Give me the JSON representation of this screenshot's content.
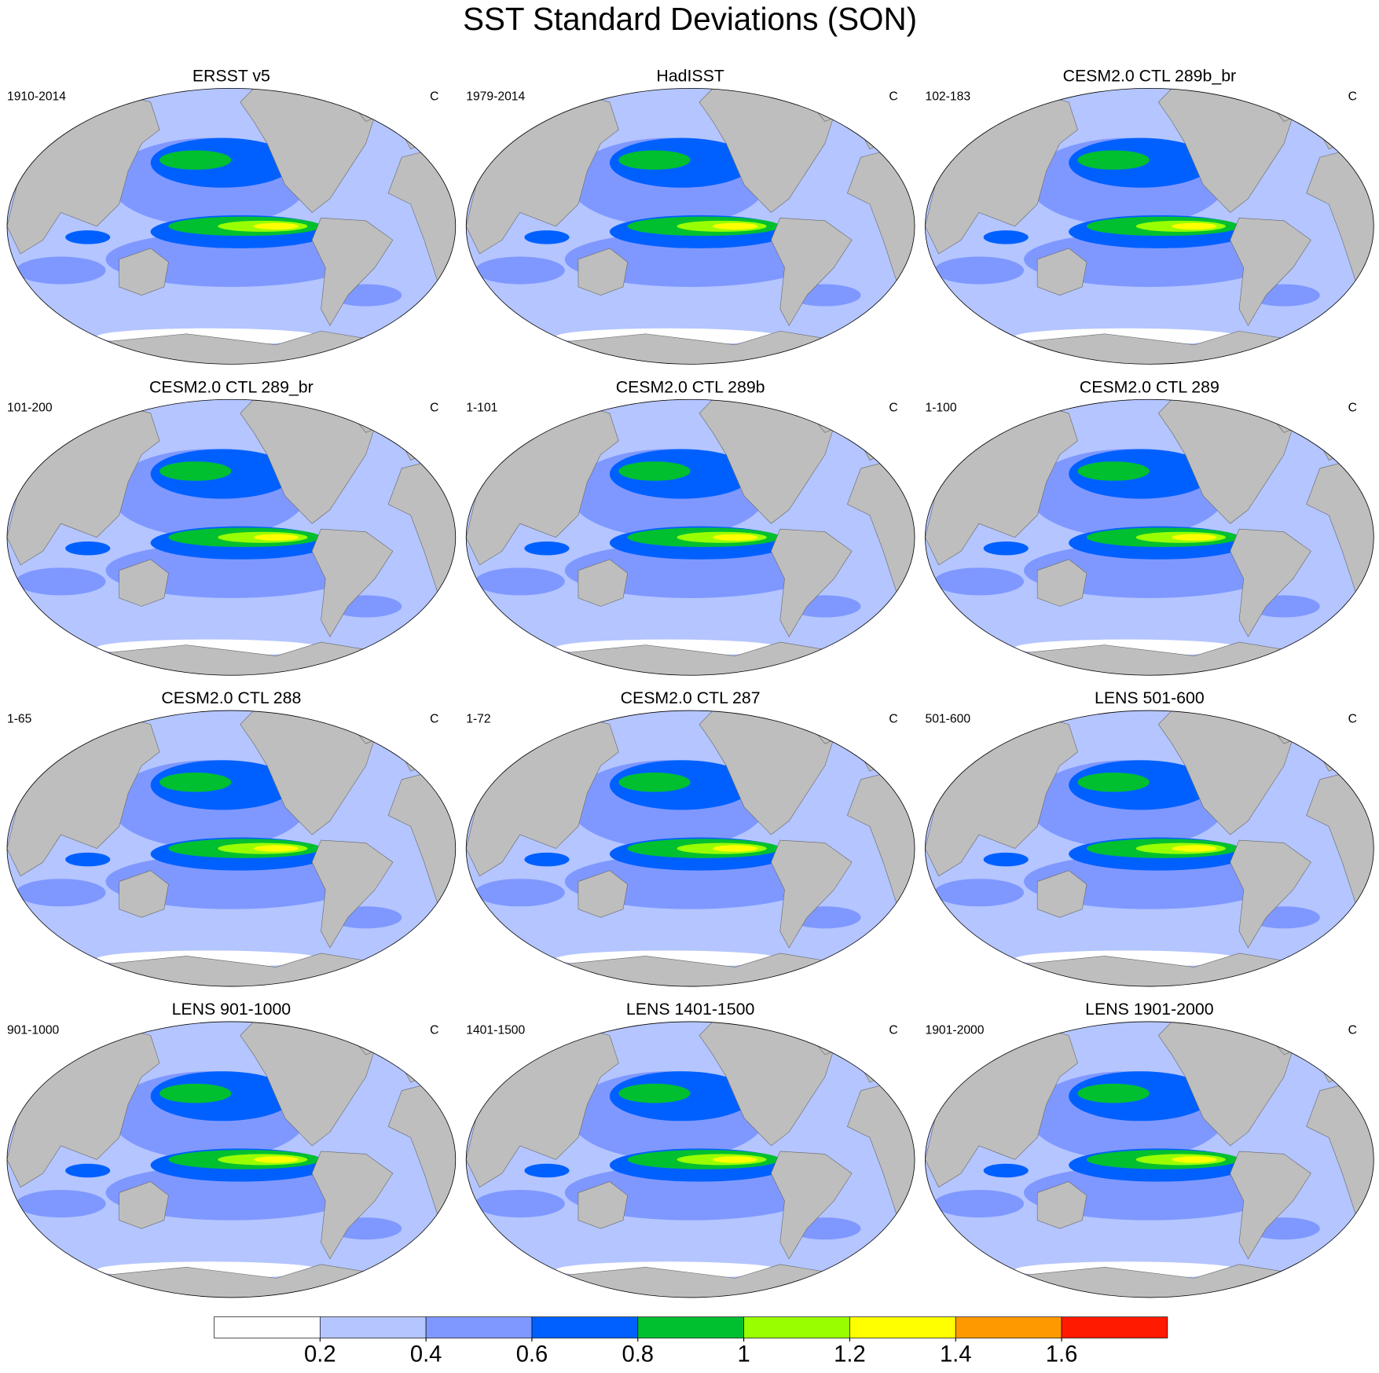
{
  "title": "SST Standard Deviations (SON)",
  "panels": [
    {
      "title": "ERSST v5",
      "period": "1910-2014",
      "units": "C"
    },
    {
      "title": "HadISST",
      "period": "1979-2014",
      "units": "C"
    },
    {
      "title": "CESM2.0 CTL 289b_br",
      "period": "102-183",
      "units": "C"
    },
    {
      "title": "CESM2.0 CTL 289_br",
      "period": "101-200",
      "units": "C"
    },
    {
      "title": "CESM2.0 CTL 289b",
      "period": "1-101",
      "units": "C"
    },
    {
      "title": "CESM2.0 CTL 289",
      "period": "1-100",
      "units": "C"
    },
    {
      "title": "CESM2.0 CTL 288",
      "period": "1-65",
      "units": "C"
    },
    {
      "title": "CESM2.0 CTL 287",
      "period": "1-72",
      "units": "C"
    },
    {
      "title": "LENS 501-600",
      "period": "501-600",
      "units": "C"
    },
    {
      "title": "LENS 901-1000",
      "period": "901-1000",
      "units": "C"
    },
    {
      "title": "LENS 1401-1500",
      "period": "1401-1500",
      "units": "C"
    },
    {
      "title": "LENS 1901-2000",
      "period": "1901-2000",
      "units": "C"
    }
  ],
  "colorbar": {
    "levels": [
      0.2,
      0.4,
      0.6,
      0.8,
      1,
      1.2,
      1.4,
      1.6
    ],
    "colors": [
      "#ffffff",
      "#b4c5ff",
      "#7f98ff",
      "#0060ff",
      "#00c030",
      "#99ff00",
      "#ffff00",
      "#ff9900",
      "#ff1a00"
    ]
  }
}
